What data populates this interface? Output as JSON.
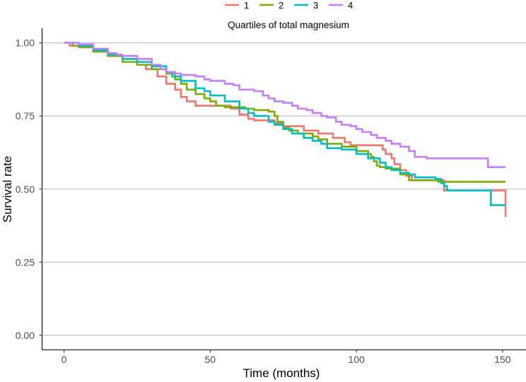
{
  "chart_data": {
    "type": "line",
    "title": "",
    "xlabel": "Time (months)",
    "ylabel": "Survival rate",
    "xlim": [
      -7.5,
      158
    ],
    "ylim": [
      -0.05,
      1.05
    ],
    "x_ticks": [
      0,
      50,
      100,
      150
    ],
    "x_tick_labels": [
      "0",
      "50",
      "100",
      "150"
    ],
    "y_ticks": [
      0,
      0.25,
      0.5,
      0.75,
      1.0
    ],
    "y_tick_labels": [
      "0.00",
      "0.25",
      "0.50",
      "0.75",
      "1.00"
    ],
    "grid": "horizontal",
    "legend": {
      "position": "top",
      "title": "Quartiles of total magnesium",
      "entries": [
        "1",
        "2",
        "3",
        "4"
      ]
    },
    "series": [
      {
        "name": "1",
        "color": "#F0766D",
        "points": [
          [
            0,
            1.0
          ],
          [
            2,
            0.99
          ],
          [
            5,
            0.985
          ],
          [
            10,
            0.97
          ],
          [
            15,
            0.96
          ],
          [
            20,
            0.945
          ],
          [
            25,
            0.925
          ],
          [
            28,
            0.91
          ],
          [
            32,
            0.885
          ],
          [
            35,
            0.86
          ],
          [
            38,
            0.84
          ],
          [
            40,
            0.815
          ],
          [
            42,
            0.8
          ],
          [
            45,
            0.785
          ],
          [
            55,
            0.785
          ],
          [
            57,
            0.775
          ],
          [
            60,
            0.755
          ],
          [
            63,
            0.74
          ],
          [
            65,
            0.735
          ],
          [
            70,
            0.735
          ],
          [
            72,
            0.725
          ],
          [
            75,
            0.715
          ],
          [
            80,
            0.715
          ],
          [
            82,
            0.7
          ],
          [
            85,
            0.7
          ],
          [
            87,
            0.69
          ],
          [
            90,
            0.69
          ],
          [
            92,
            0.675
          ],
          [
            94,
            0.675
          ],
          [
            96,
            0.66
          ],
          [
            98,
            0.65
          ],
          [
            108,
            0.65
          ],
          [
            109,
            0.635
          ],
          [
            110,
            0.62
          ],
          [
            112,
            0.605
          ],
          [
            113,
            0.585
          ],
          [
            115,
            0.565
          ],
          [
            117,
            0.545
          ],
          [
            119,
            0.53
          ],
          [
            128,
            0.53
          ],
          [
            130,
            0.495
          ],
          [
            151,
            0.495
          ],
          [
            151,
            0.405
          ]
        ]
      },
      {
        "name": "2",
        "color": "#7CAE00",
        "points": [
          [
            0,
            1.0
          ],
          [
            3,
            0.99
          ],
          [
            6,
            0.985
          ],
          [
            10,
            0.97
          ],
          [
            15,
            0.955
          ],
          [
            20,
            0.935
          ],
          [
            25,
            0.925
          ],
          [
            30,
            0.91
          ],
          [
            35,
            0.895
          ],
          [
            38,
            0.875
          ],
          [
            40,
            0.86
          ],
          [
            42,
            0.84
          ],
          [
            45,
            0.825
          ],
          [
            48,
            0.81
          ],
          [
            50,
            0.8
          ],
          [
            52,
            0.785
          ],
          [
            55,
            0.78
          ],
          [
            60,
            0.78
          ],
          [
            62,
            0.775
          ],
          [
            65,
            0.77
          ],
          [
            70,
            0.765
          ],
          [
            72,
            0.75
          ],
          [
            73,
            0.73
          ],
          [
            75,
            0.71
          ],
          [
            77,
            0.7
          ],
          [
            80,
            0.69
          ],
          [
            85,
            0.68
          ],
          [
            87,
            0.67
          ],
          [
            90,
            0.655
          ],
          [
            95,
            0.645
          ],
          [
            100,
            0.63
          ],
          [
            104,
            0.62
          ],
          [
            105,
            0.61
          ],
          [
            106,
            0.595
          ],
          [
            107,
            0.58
          ],
          [
            108,
            0.575
          ],
          [
            110,
            0.57
          ],
          [
            113,
            0.57
          ],
          [
            115,
            0.55
          ],
          [
            118,
            0.53
          ],
          [
            128,
            0.525
          ],
          [
            151,
            0.525
          ]
        ]
      },
      {
        "name": "3",
        "color": "#00BFC4",
        "points": [
          [
            0,
            1.0
          ],
          [
            5,
            0.99
          ],
          [
            10,
            0.975
          ],
          [
            15,
            0.96
          ],
          [
            20,
            0.945
          ],
          [
            25,
            0.935
          ],
          [
            30,
            0.92
          ],
          [
            35,
            0.9
          ],
          [
            37,
            0.885
          ],
          [
            40,
            0.87
          ],
          [
            45,
            0.845
          ],
          [
            48,
            0.835
          ],
          [
            50,
            0.82
          ],
          [
            55,
            0.8
          ],
          [
            60,
            0.775
          ],
          [
            63,
            0.76
          ],
          [
            65,
            0.75
          ],
          [
            70,
            0.73
          ],
          [
            72,
            0.72
          ],
          [
            75,
            0.705
          ],
          [
            78,
            0.69
          ],
          [
            82,
            0.675
          ],
          [
            85,
            0.665
          ],
          [
            88,
            0.655
          ],
          [
            90,
            0.64
          ],
          [
            95,
            0.635
          ],
          [
            100,
            0.62
          ],
          [
            104,
            0.605
          ],
          [
            108,
            0.59
          ],
          [
            110,
            0.575
          ],
          [
            112,
            0.565
          ],
          [
            115,
            0.555
          ],
          [
            118,
            0.55
          ],
          [
            120,
            0.54
          ],
          [
            127,
            0.535
          ],
          [
            129,
            0.52
          ],
          [
            130,
            0.51
          ],
          [
            131,
            0.495
          ],
          [
            145,
            0.495
          ],
          [
            146,
            0.445
          ],
          [
            151,
            0.445
          ]
        ]
      },
      {
        "name": "4",
        "color": "#C77CFF",
        "points": [
          [
            0,
            1.0
          ],
          [
            5,
            0.995
          ],
          [
            10,
            0.98
          ],
          [
            15,
            0.965
          ],
          [
            18,
            0.96
          ],
          [
            20,
            0.955
          ],
          [
            25,
            0.945
          ],
          [
            30,
            0.925
          ],
          [
            33,
            0.91
          ],
          [
            35,
            0.9
          ],
          [
            38,
            0.895
          ],
          [
            40,
            0.89
          ],
          [
            45,
            0.885
          ],
          [
            48,
            0.875
          ],
          [
            50,
            0.87
          ],
          [
            55,
            0.86
          ],
          [
            58,
            0.855
          ],
          [
            60,
            0.84
          ],
          [
            65,
            0.835
          ],
          [
            68,
            0.82
          ],
          [
            70,
            0.81
          ],
          [
            72,
            0.8
          ],
          [
            75,
            0.795
          ],
          [
            78,
            0.785
          ],
          [
            80,
            0.775
          ],
          [
            83,
            0.77
          ],
          [
            85,
            0.76
          ],
          [
            88,
            0.75
          ],
          [
            90,
            0.745
          ],
          [
            93,
            0.73
          ],
          [
            95,
            0.72
          ],
          [
            98,
            0.715
          ],
          [
            100,
            0.705
          ],
          [
            102,
            0.695
          ],
          [
            105,
            0.685
          ],
          [
            107,
            0.675
          ],
          [
            110,
            0.665
          ],
          [
            112,
            0.655
          ],
          [
            115,
            0.645
          ],
          [
            118,
            0.63
          ],
          [
            120,
            0.61
          ],
          [
            124,
            0.605
          ],
          [
            144,
            0.605
          ],
          [
            145,
            0.575
          ],
          [
            151,
            0.575
          ]
        ]
      }
    ]
  }
}
